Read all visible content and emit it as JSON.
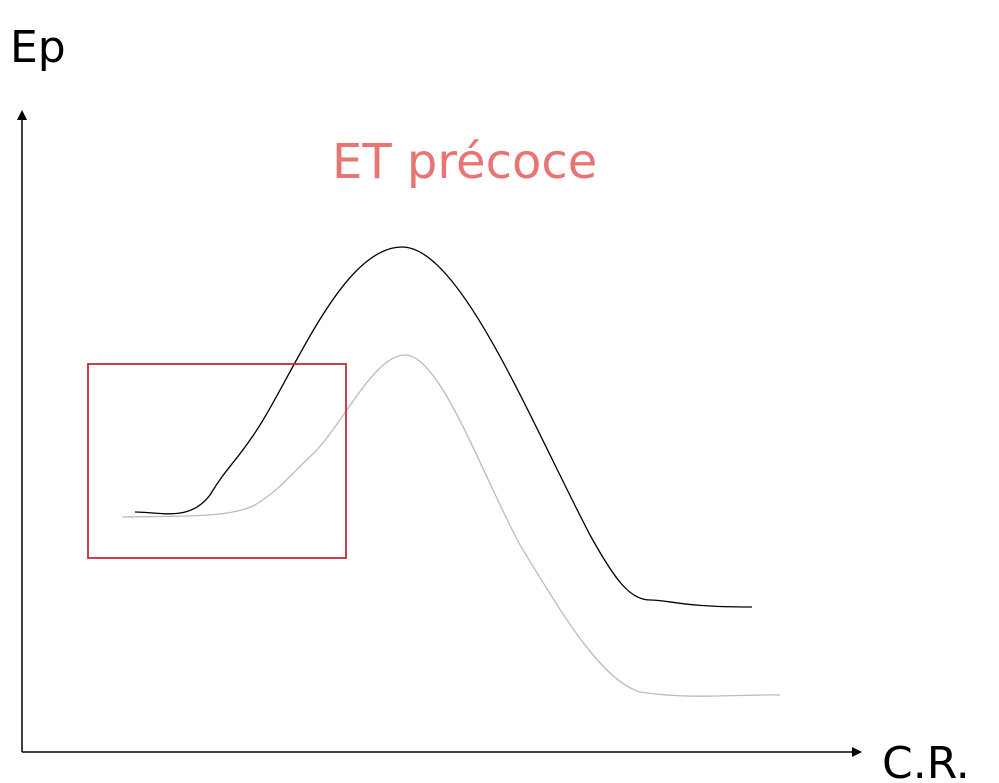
{
  "labels": {
    "y_axis": "Ep",
    "x_axis": "C.R.",
    "annotation": "ET précoce"
  }
}
